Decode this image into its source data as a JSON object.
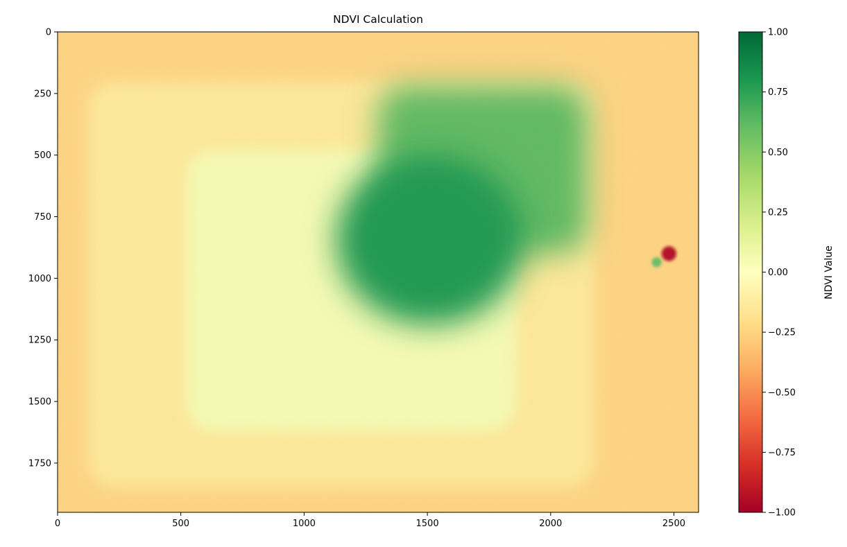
{
  "chart_data": {
    "type": "heatmap",
    "title": "NDVI Calculation",
    "colormap": "RdYlGn",
    "image_width": 2600,
    "image_height": 1950,
    "xlim": [
      0,
      2600
    ],
    "ylim": [
      1950,
      0
    ],
    "x_ticks": [
      0,
      500,
      1000,
      1500,
      2000,
      2500
    ],
    "y_ticks": [
      0,
      250,
      500,
      750,
      1000,
      1250,
      1500,
      1750
    ],
    "grid": false,
    "colorbar": {
      "label": "NDVI Value",
      "range": [
        -1.0,
        1.0
      ],
      "ticks": [
        "1.00",
        "0.75",
        "0.50",
        "0.25",
        "0.00",
        "−0.25",
        "−0.50",
        "−0.75",
        "−1.00"
      ],
      "tick_values": [
        1.0,
        0.75,
        0.5,
        0.25,
        0.0,
        -0.25,
        -0.5,
        -0.75,
        -1.0
      ],
      "colors": [
        "#a50026",
        "#d73027",
        "#f46d43",
        "#fdae61",
        "#fee08b",
        "#ffffbf",
        "#d9ef8b",
        "#a6d96a",
        "#66bd63",
        "#1a9850",
        "#006837"
      ]
    },
    "regions": [
      {
        "name": "background",
        "x": [
          0,
          2600
        ],
        "y": [
          0,
          1950
        ],
        "ndvi": -0.25
      },
      {
        "name": "outer frame",
        "x": [
          120,
          2180
        ],
        "y": [
          200,
          1850
        ],
        "ndvi": -0.15
      },
      {
        "name": "inner plate",
        "x": [
          520,
          1860
        ],
        "y": [
          480,
          1620
        ],
        "ndvi": 0.05
      },
      {
        "name": "upper green band",
        "x": [
          1300,
          2150
        ],
        "y": [
          220,
          900
        ],
        "ndvi": 0.62
      },
      {
        "name": "green ellipse",
        "x": [
          1130,
          1890
        ],
        "y": [
          500,
          1190
        ],
        "ndvi": 0.8
      },
      {
        "name": "red spot",
        "x": [
          2450,
          2510
        ],
        "y": [
          870,
          930
        ],
        "ndvi": -0.95
      },
      {
        "name": "green spot",
        "x": [
          2410,
          2450
        ],
        "y": [
          915,
          955
        ],
        "ndvi": 0.6
      }
    ]
  }
}
